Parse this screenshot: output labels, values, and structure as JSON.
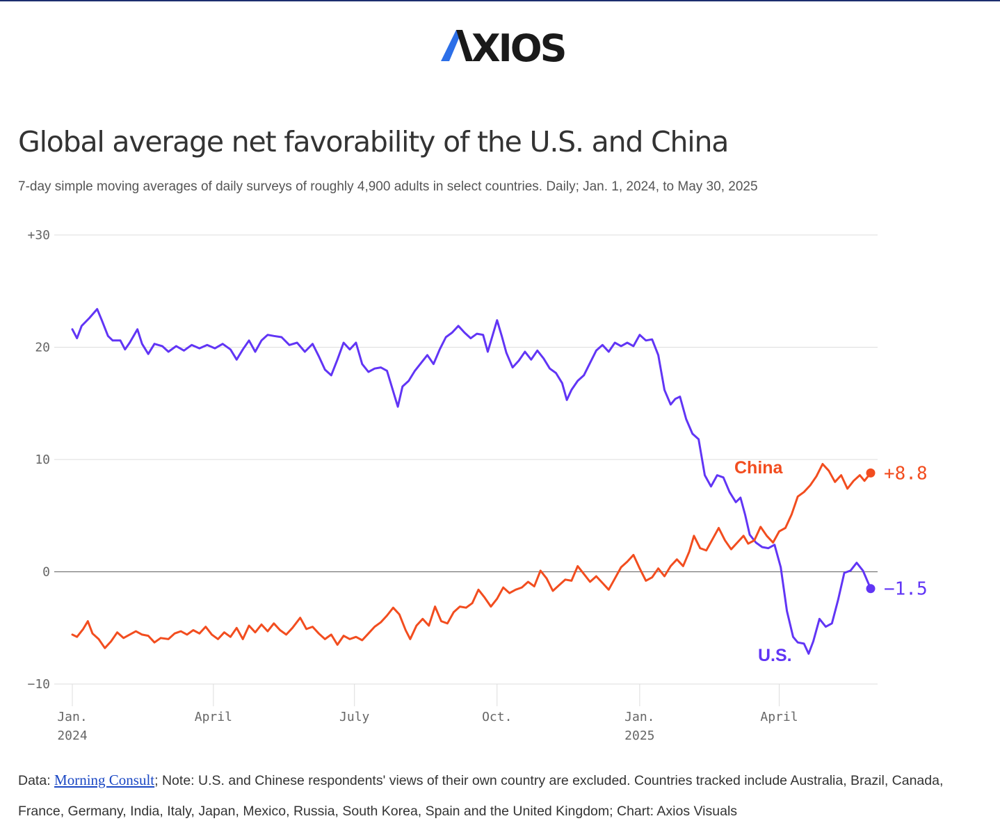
{
  "header": {
    "logo_text": "AXIOS",
    "logo_colors": {
      "accent": "#2c6fe8",
      "text": "#1a1a1a"
    }
  },
  "title": "Global average net favorability of the U.S. and China",
  "subtitle": "7-day simple moving averages of daily surveys of roughly 4,900 adults in select countries. Daily; Jan. 1, 2024, to May 30, 2025",
  "footer": {
    "prefix": "Data: ",
    "source_link": "Morning Consult",
    "text": "; Note: U.S. and Chinese respondents' views of their own country are excluded. Countries tracked include Australia, Brazil, Canada, France, Germany, India, Italy, Japan, Mexico, Russia, South Korea, Spain and the United Kingdom; Chart: Axios Visuals"
  },
  "chart_data": {
    "type": "line",
    "title": "Global average net favorability of the U.S. and China",
    "x_range": [
      "2024-01-01",
      "2025-05-30"
    ],
    "ylim": [
      -10,
      30
    ],
    "y_ticks": [
      {
        "value": 30,
        "label": "+30"
      },
      {
        "value": 20,
        "label": "20"
      },
      {
        "value": 10,
        "label": "10"
      },
      {
        "value": 0,
        "label": "0"
      },
      {
        "value": -10,
        "label": "−10"
      }
    ],
    "x_ticks": [
      {
        "date": "2024-01-01",
        "label": "Jan.",
        "year": "2024"
      },
      {
        "date": "2024-04-01",
        "label": "April",
        "year": ""
      },
      {
        "date": "2024-07-01",
        "label": "July",
        "year": ""
      },
      {
        "date": "2024-10-01",
        "label": "Oct.",
        "year": ""
      },
      {
        "date": "2025-01-01",
        "label": "Jan.",
        "year": "2025"
      },
      {
        "date": "2025-04-01",
        "label": "April",
        "year": ""
      }
    ],
    "grid": true,
    "series": [
      {
        "name": "U.S.",
        "color": "#6135f5",
        "end_label": "−1.5",
        "points": [
          [
            "2024-01-01",
            21.6
          ],
          [
            "2024-01-04",
            20.8
          ],
          [
            "2024-01-07",
            21.9
          ],
          [
            "2024-01-12",
            22.6
          ],
          [
            "2024-01-17",
            23.4
          ],
          [
            "2024-01-20",
            22.4
          ],
          [
            "2024-01-24",
            21.0
          ],
          [
            "2024-01-27",
            20.6
          ],
          [
            "2024-02-01",
            20.6
          ],
          [
            "2024-02-04",
            19.8
          ],
          [
            "2024-02-07",
            20.4
          ],
          [
            "2024-02-12",
            21.6
          ],
          [
            "2024-02-15",
            20.3
          ],
          [
            "2024-02-19",
            19.4
          ],
          [
            "2024-02-23",
            20.3
          ],
          [
            "2024-02-28",
            20.1
          ],
          [
            "2024-03-03",
            19.6
          ],
          [
            "2024-03-08",
            20.1
          ],
          [
            "2024-03-13",
            19.7
          ],
          [
            "2024-03-18",
            20.2
          ],
          [
            "2024-03-23",
            19.9
          ],
          [
            "2024-03-28",
            20.2
          ],
          [
            "2024-04-02",
            19.9
          ],
          [
            "2024-04-07",
            20.3
          ],
          [
            "2024-04-12",
            19.8
          ],
          [
            "2024-04-16",
            18.9
          ],
          [
            "2024-04-20",
            19.8
          ],
          [
            "2024-04-24",
            20.6
          ],
          [
            "2024-04-28",
            19.6
          ],
          [
            "2024-05-02",
            20.6
          ],
          [
            "2024-05-06",
            21.1
          ],
          [
            "2024-05-10",
            21.0
          ],
          [
            "2024-05-15",
            20.9
          ],
          [
            "2024-05-20",
            20.2
          ],
          [
            "2024-05-25",
            20.4
          ],
          [
            "2024-05-30",
            19.6
          ],
          [
            "2024-06-04",
            20.3
          ],
          [
            "2024-06-08",
            19.2
          ],
          [
            "2024-06-12",
            18.0
          ],
          [
            "2024-06-16",
            17.5
          ],
          [
            "2024-06-20",
            18.9
          ],
          [
            "2024-06-24",
            20.4
          ],
          [
            "2024-06-28",
            19.8
          ],
          [
            "2024-07-02",
            20.4
          ],
          [
            "2024-07-06",
            18.5
          ],
          [
            "2024-07-10",
            17.8
          ],
          [
            "2024-07-14",
            18.1
          ],
          [
            "2024-07-18",
            18.2
          ],
          [
            "2024-07-22",
            17.9
          ],
          [
            "2024-07-27",
            15.6
          ],
          [
            "2024-07-29",
            14.7
          ],
          [
            "2024-08-01",
            16.5
          ],
          [
            "2024-08-05",
            17.0
          ],
          [
            "2024-08-09",
            17.9
          ],
          [
            "2024-08-13",
            18.6
          ],
          [
            "2024-08-17",
            19.3
          ],
          [
            "2024-08-21",
            18.5
          ],
          [
            "2024-08-25",
            19.8
          ],
          [
            "2024-08-29",
            20.9
          ],
          [
            "2024-09-02",
            21.3
          ],
          [
            "2024-09-06",
            21.9
          ],
          [
            "2024-09-10",
            21.3
          ],
          [
            "2024-09-14",
            20.8
          ],
          [
            "2024-09-18",
            21.2
          ],
          [
            "2024-09-22",
            21.1
          ],
          [
            "2024-09-25",
            19.6
          ],
          [
            "2024-09-28",
            21.0
          ],
          [
            "2024-10-01",
            22.4
          ],
          [
            "2024-10-04",
            21.0
          ],
          [
            "2024-10-07",
            19.5
          ],
          [
            "2024-10-11",
            18.2
          ],
          [
            "2024-10-15",
            18.8
          ],
          [
            "2024-10-19",
            19.6
          ],
          [
            "2024-10-23",
            18.9
          ],
          [
            "2024-10-27",
            19.7
          ],
          [
            "2024-10-31",
            19.0
          ],
          [
            "2024-11-04",
            18.1
          ],
          [
            "2024-11-08",
            17.7
          ],
          [
            "2024-11-12",
            16.8
          ],
          [
            "2024-11-15",
            15.3
          ],
          [
            "2024-11-18",
            16.2
          ],
          [
            "2024-11-22",
            17.0
          ],
          [
            "2024-11-26",
            17.5
          ],
          [
            "2024-11-30",
            18.6
          ],
          [
            "2024-12-04",
            19.7
          ],
          [
            "2024-12-08",
            20.2
          ],
          [
            "2024-12-12",
            19.6
          ],
          [
            "2024-12-16",
            20.4
          ],
          [
            "2024-12-20",
            20.1
          ],
          [
            "2024-12-24",
            20.4
          ],
          [
            "2024-12-28",
            20.1
          ],
          [
            "2025-01-01",
            21.1
          ],
          [
            "2025-01-05",
            20.6
          ],
          [
            "2025-01-09",
            20.7
          ],
          [
            "2025-01-13",
            19.3
          ],
          [
            "2025-01-17",
            16.2
          ],
          [
            "2025-01-21",
            14.9
          ],
          [
            "2025-01-24",
            15.4
          ],
          [
            "2025-01-27",
            15.6
          ],
          [
            "2025-01-31",
            13.6
          ],
          [
            "2025-02-04",
            12.3
          ],
          [
            "2025-02-08",
            11.8
          ],
          [
            "2025-02-12",
            8.6
          ],
          [
            "2025-02-16",
            7.6
          ],
          [
            "2025-02-20",
            8.6
          ],
          [
            "2025-02-24",
            8.4
          ],
          [
            "2025-02-28",
            7.1
          ],
          [
            "2025-03-04",
            6.2
          ],
          [
            "2025-03-07",
            6.6
          ],
          [
            "2025-03-10",
            5.1
          ],
          [
            "2025-03-13",
            3.3
          ],
          [
            "2025-03-17",
            2.6
          ],
          [
            "2025-03-21",
            2.2
          ],
          [
            "2025-03-25",
            2.1
          ],
          [
            "2025-03-29",
            2.4
          ],
          [
            "2025-04-02",
            0.4
          ],
          [
            "2025-04-06",
            -3.5
          ],
          [
            "2025-04-10",
            -5.8
          ],
          [
            "2025-04-13",
            -6.3
          ],
          [
            "2025-04-17",
            -6.4
          ],
          [
            "2025-04-20",
            -7.3
          ],
          [
            "2025-04-23",
            -6.2
          ],
          [
            "2025-04-27",
            -4.2
          ],
          [
            "2025-05-01",
            -4.9
          ],
          [
            "2025-05-05",
            -4.6
          ],
          [
            "2025-05-09",
            -2.5
          ],
          [
            "2025-05-13",
            -0.1
          ],
          [
            "2025-05-17",
            0.1
          ],
          [
            "2025-05-21",
            0.8
          ],
          [
            "2025-05-25",
            0.1
          ],
          [
            "2025-05-30",
            -1.5
          ]
        ]
      },
      {
        "name": "China",
        "color": "#f24d1f",
        "end_label": "+8.8",
        "points": [
          [
            "2024-01-01",
            -5.6
          ],
          [
            "2024-01-04",
            -5.8
          ],
          [
            "2024-01-08",
            -5.1
          ],
          [
            "2024-01-11",
            -4.4
          ],
          [
            "2024-01-14",
            -5.5
          ],
          [
            "2024-01-18",
            -6.0
          ],
          [
            "2024-01-22",
            -6.8
          ],
          [
            "2024-01-26",
            -6.2
          ],
          [
            "2024-01-30",
            -5.4
          ],
          [
            "2024-02-03",
            -5.9
          ],
          [
            "2024-02-07",
            -5.6
          ],
          [
            "2024-02-11",
            -5.3
          ],
          [
            "2024-02-15",
            -5.6
          ],
          [
            "2024-02-19",
            -5.7
          ],
          [
            "2024-02-23",
            -6.3
          ],
          [
            "2024-02-27",
            -5.9
          ],
          [
            "2024-03-03",
            -6.0
          ],
          [
            "2024-03-07",
            -5.5
          ],
          [
            "2024-03-11",
            -5.3
          ],
          [
            "2024-03-15",
            -5.6
          ],
          [
            "2024-03-19",
            -5.2
          ],
          [
            "2024-03-23",
            -5.5
          ],
          [
            "2024-03-27",
            -4.9
          ],
          [
            "2024-03-31",
            -5.6
          ],
          [
            "2024-04-04",
            -6.0
          ],
          [
            "2024-04-08",
            -5.4
          ],
          [
            "2024-04-12",
            -5.8
          ],
          [
            "2024-04-16",
            -5.0
          ],
          [
            "2024-04-20",
            -6.0
          ],
          [
            "2024-04-24",
            -4.8
          ],
          [
            "2024-04-28",
            -5.4
          ],
          [
            "2024-05-02",
            -4.7
          ],
          [
            "2024-05-06",
            -5.3
          ],
          [
            "2024-05-10",
            -4.6
          ],
          [
            "2024-05-14",
            -5.2
          ],
          [
            "2024-05-18",
            -5.6
          ],
          [
            "2024-05-22",
            -5.0
          ],
          [
            "2024-05-27",
            -4.1
          ],
          [
            "2024-05-31",
            -5.1
          ],
          [
            "2024-06-04",
            -4.9
          ],
          [
            "2024-06-08",
            -5.5
          ],
          [
            "2024-06-12",
            -6.0
          ],
          [
            "2024-06-16",
            -5.6
          ],
          [
            "2024-06-20",
            -6.5
          ],
          [
            "2024-06-24",
            -5.7
          ],
          [
            "2024-06-28",
            -6.0
          ],
          [
            "2024-07-02",
            -5.8
          ],
          [
            "2024-07-06",
            -6.1
          ],
          [
            "2024-07-10",
            -5.5
          ],
          [
            "2024-07-14",
            -4.9
          ],
          [
            "2024-07-18",
            -4.5
          ],
          [
            "2024-07-22",
            -3.9
          ],
          [
            "2024-07-26",
            -3.2
          ],
          [
            "2024-07-30",
            -3.8
          ],
          [
            "2024-08-03",
            -5.2
          ],
          [
            "2024-08-06",
            -6.0
          ],
          [
            "2024-08-10",
            -4.8
          ],
          [
            "2024-08-14",
            -4.2
          ],
          [
            "2024-08-18",
            -4.8
          ],
          [
            "2024-08-22",
            -3.1
          ],
          [
            "2024-08-26",
            -4.4
          ],
          [
            "2024-08-30",
            -4.6
          ],
          [
            "2024-09-03",
            -3.6
          ],
          [
            "2024-09-07",
            -3.1
          ],
          [
            "2024-09-11",
            -3.2
          ],
          [
            "2024-09-15",
            -2.8
          ],
          [
            "2024-09-19",
            -1.6
          ],
          [
            "2024-09-23",
            -2.3
          ],
          [
            "2024-09-27",
            -3.1
          ],
          [
            "2024-10-01",
            -2.4
          ],
          [
            "2024-10-05",
            -1.4
          ],
          [
            "2024-10-09",
            -1.9
          ],
          [
            "2024-10-13",
            -1.6
          ],
          [
            "2024-10-17",
            -1.4
          ],
          [
            "2024-10-21",
            -0.9
          ],
          [
            "2024-10-25",
            -1.3
          ],
          [
            "2024-10-29",
            0.1
          ],
          [
            "2024-11-02",
            -0.6
          ],
          [
            "2024-11-06",
            -1.7
          ],
          [
            "2024-11-10",
            -1.2
          ],
          [
            "2024-11-14",
            -0.7
          ],
          [
            "2024-11-18",
            -0.8
          ],
          [
            "2024-11-22",
            0.5
          ],
          [
            "2024-11-26",
            -0.2
          ],
          [
            "2024-11-30",
            -0.9
          ],
          [
            "2024-12-04",
            -0.4
          ],
          [
            "2024-12-08",
            -1.0
          ],
          [
            "2024-12-12",
            -1.6
          ],
          [
            "2024-12-16",
            -0.6
          ],
          [
            "2024-12-20",
            0.4
          ],
          [
            "2024-12-24",
            0.9
          ],
          [
            "2024-12-28",
            1.5
          ],
          [
            "2025-01-01",
            0.3
          ],
          [
            "2025-01-05",
            -0.8
          ],
          [
            "2025-01-09",
            -0.5
          ],
          [
            "2025-01-13",
            0.3
          ],
          [
            "2025-01-17",
            -0.4
          ],
          [
            "2025-01-21",
            0.5
          ],
          [
            "2025-01-25",
            1.1
          ],
          [
            "2025-01-29",
            0.5
          ],
          [
            "2025-02-02",
            1.8
          ],
          [
            "2025-02-05",
            3.2
          ],
          [
            "2025-02-09",
            2.1
          ],
          [
            "2025-02-13",
            1.9
          ],
          [
            "2025-02-17",
            2.9
          ],
          [
            "2025-02-21",
            3.9
          ],
          [
            "2025-02-25",
            2.8
          ],
          [
            "2025-03-01",
            2.0
          ],
          [
            "2025-03-05",
            2.6
          ],
          [
            "2025-03-09",
            3.2
          ],
          [
            "2025-03-12",
            2.5
          ],
          [
            "2025-03-16",
            2.8
          ],
          [
            "2025-03-20",
            4.0
          ],
          [
            "2025-03-24",
            3.2
          ],
          [
            "2025-03-28",
            2.6
          ],
          [
            "2025-04-01",
            3.6
          ],
          [
            "2025-04-05",
            3.9
          ],
          [
            "2025-04-09",
            5.1
          ],
          [
            "2025-04-13",
            6.7
          ],
          [
            "2025-04-17",
            7.1
          ],
          [
            "2025-04-21",
            7.7
          ],
          [
            "2025-04-25",
            8.5
          ],
          [
            "2025-04-29",
            9.6
          ],
          [
            "2025-05-03",
            9.0
          ],
          [
            "2025-05-07",
            8.0
          ],
          [
            "2025-05-11",
            8.6
          ],
          [
            "2025-05-15",
            7.4
          ],
          [
            "2025-05-19",
            8.1
          ],
          [
            "2025-05-23",
            8.6
          ],
          [
            "2025-05-26",
            8.1
          ],
          [
            "2025-05-30",
            8.8
          ]
        ]
      }
    ]
  }
}
